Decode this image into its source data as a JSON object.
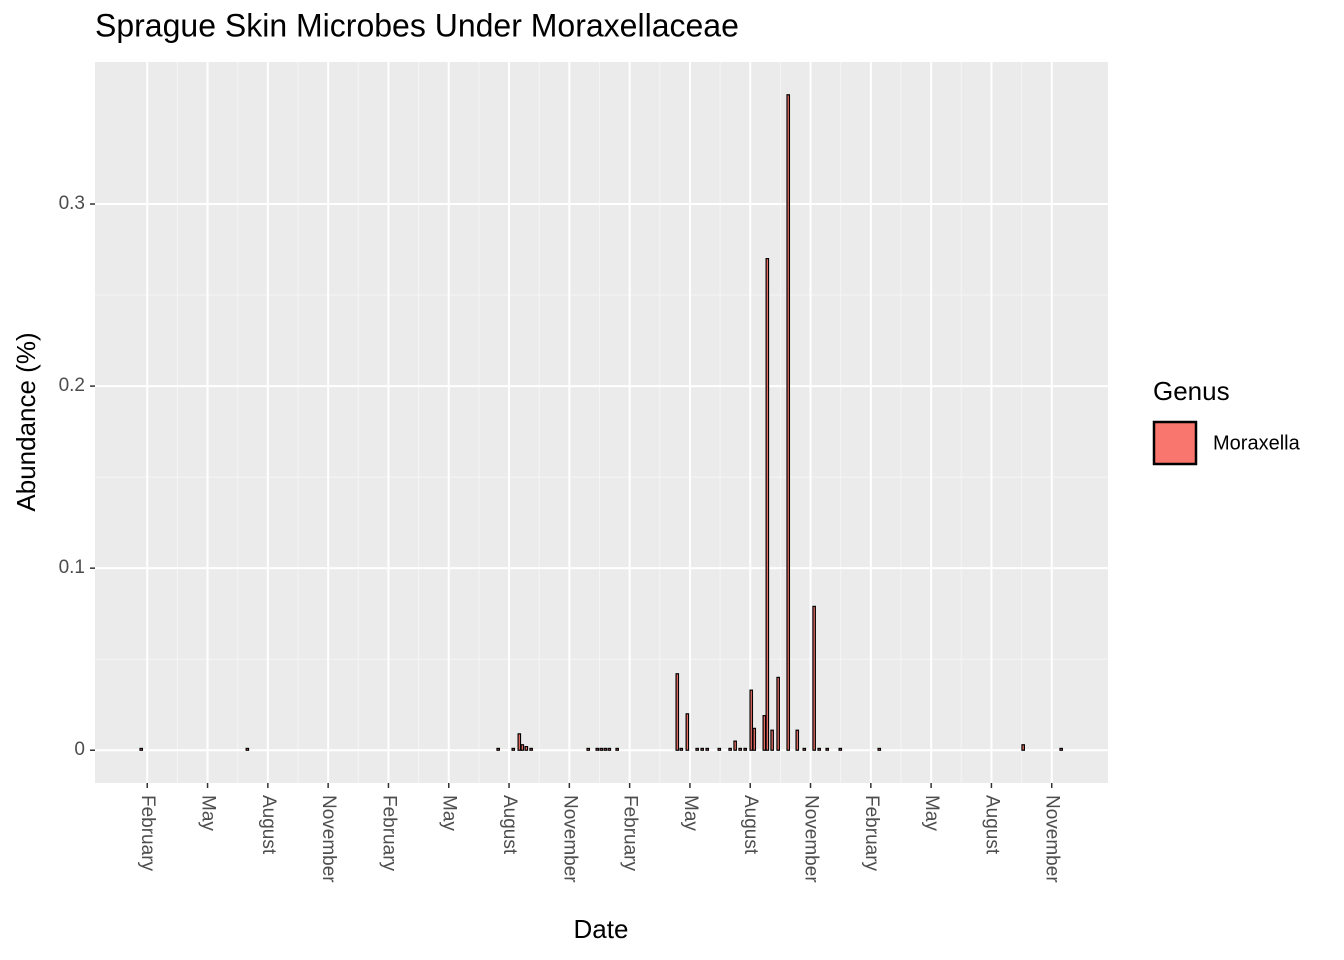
{
  "chart_data": {
    "type": "bar",
    "title": "Sprague Skin Microbes Under Moraxellaceae",
    "x_label": "Date",
    "y_label": "Abundance (%)",
    "legend_title": "Genus",
    "x": [
      0.7,
      5.98,
      18.46,
      19.21,
      19.51,
      19.66,
      19.86,
      20.1,
      22.94,
      23.39,
      23.59,
      23.79,
      23.99,
      24.38,
      27.37,
      27.57,
      27.87,
      28.36,
      28.61,
      28.86,
      29.46,
      30.0,
      30.25,
      30.5,
      30.75,
      31.05,
      31.2,
      31.7,
      31.85,
      32.09,
      32.39,
      32.89,
      33.34,
      33.69,
      34.18,
      34.43,
      34.83,
      35.48,
      37.42,
      44.58,
      46.47
    ],
    "series": [
      {
        "name": "Moraxella",
        "color": "#F8766D",
        "values": [
          0.001,
          0.001,
          0.001,
          0.001,
          0.009,
          0.003,
          0.002,
          0.001,
          0.001,
          0.001,
          0.001,
          0.001,
          0.001,
          0.001,
          0.042,
          0.001,
          0.02,
          0.001,
          0.001,
          0.001,
          0.001,
          0.001,
          0.005,
          0.001,
          0.001,
          0.033,
          0.012,
          0.019,
          0.27,
          0.011,
          0.04,
          0.36,
          0.011,
          0.001,
          0.079,
          0.001,
          0.001,
          0.001,
          0.001,
          0.003,
          0.001
        ]
      }
    ],
    "xlim": [
      -1.6,
      48.8
    ],
    "xticks": [
      {
        "value": 1,
        "label": "February"
      },
      {
        "value": 4,
        "label": "May"
      },
      {
        "value": 7,
        "label": "August"
      },
      {
        "value": 10,
        "label": "November"
      },
      {
        "value": 13,
        "label": "February"
      },
      {
        "value": 16,
        "label": "May"
      },
      {
        "value": 19,
        "label": "August"
      },
      {
        "value": 22,
        "label": "November"
      },
      {
        "value": 25,
        "label": "February"
      },
      {
        "value": 28,
        "label": "May"
      },
      {
        "value": 31,
        "label": "August"
      },
      {
        "value": 34,
        "label": "November"
      },
      {
        "value": 37,
        "label": "February"
      },
      {
        "value": 40,
        "label": "May"
      },
      {
        "value": 43,
        "label": "August"
      },
      {
        "value": 46,
        "label": "November"
      }
    ],
    "ylim": [
      -0.018,
      0.378
    ],
    "yticks": [
      {
        "value": 0,
        "label": "0"
      },
      0.1,
      0.2,
      0.3
    ],
    "grid": true
  }
}
